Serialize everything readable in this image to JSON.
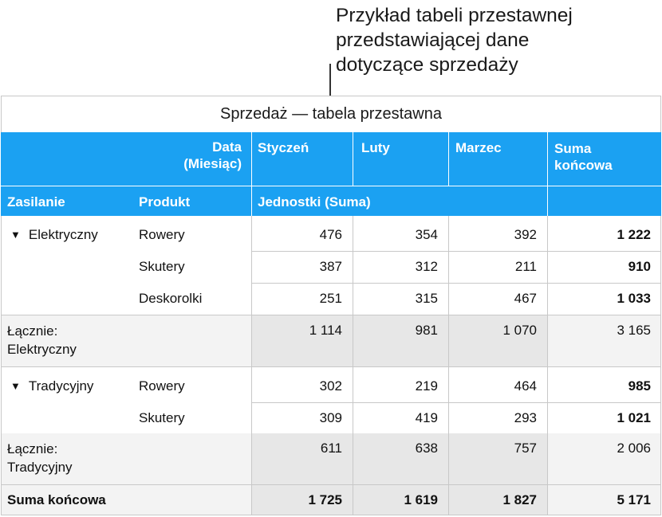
{
  "callout": {
    "lines": [
      "Przykład tabeli przestawnej",
      "przedstawiającej dane",
      "dotyczące sprzedaży"
    ]
  },
  "table": {
    "title": "Sprzedaż — tabela przestawna",
    "header": {
      "date_label_line1": "Data",
      "date_label_line2": "(Miesiąc)",
      "months": [
        "Styczeń",
        "Luty",
        "Marzec"
      ],
      "total_line1": "Suma",
      "total_line2": "końcowa"
    },
    "subheader": {
      "col1": "Zasilanie",
      "col2": "Produkt",
      "values_label": "Jednostki (Suma)"
    },
    "groups": [
      {
        "name": "Elektryczny",
        "rows": [
          {
            "product": "Rowery",
            "values": [
              "476",
              "354",
              "392"
            ],
            "total": "1 222"
          },
          {
            "product": "Skutery",
            "values": [
              "387",
              "312",
              "211"
            ],
            "total": "910"
          },
          {
            "product": "Deskorolki",
            "values": [
              "251",
              "315",
              "467"
            ],
            "total": "1 033"
          }
        ],
        "subtotal_label_line1": "Łącznie:",
        "subtotal_label_line2": "Elektryczny",
        "subtotal_values": [
          "1 114",
          "981",
          "1 070"
        ],
        "subtotal_total": "3 165"
      },
      {
        "name": "Tradycyjny",
        "rows": [
          {
            "product": "Rowery",
            "values": [
              "302",
              "219",
              "464"
            ],
            "total": "985"
          },
          {
            "product": "Skutery",
            "values": [
              "309",
              "419",
              "293"
            ],
            "total": "1 021"
          }
        ],
        "subtotal_label_line1": "Łącznie:",
        "subtotal_label_line2": "Tradycyjny",
        "subtotal_values": [
          "611",
          "638",
          "757"
        ],
        "subtotal_total": "2 006"
      }
    ],
    "grand_total": {
      "label": "Suma końcowa",
      "values": [
        "1 725",
        "1 619",
        "1 827"
      ],
      "total": "5 171"
    },
    "colors": {
      "header_blue": "#1ba1f2",
      "subtotal_gray": "#e7e7e7",
      "label_gray": "#f3f3f3",
      "grid": "#c8c8c8"
    }
  }
}
